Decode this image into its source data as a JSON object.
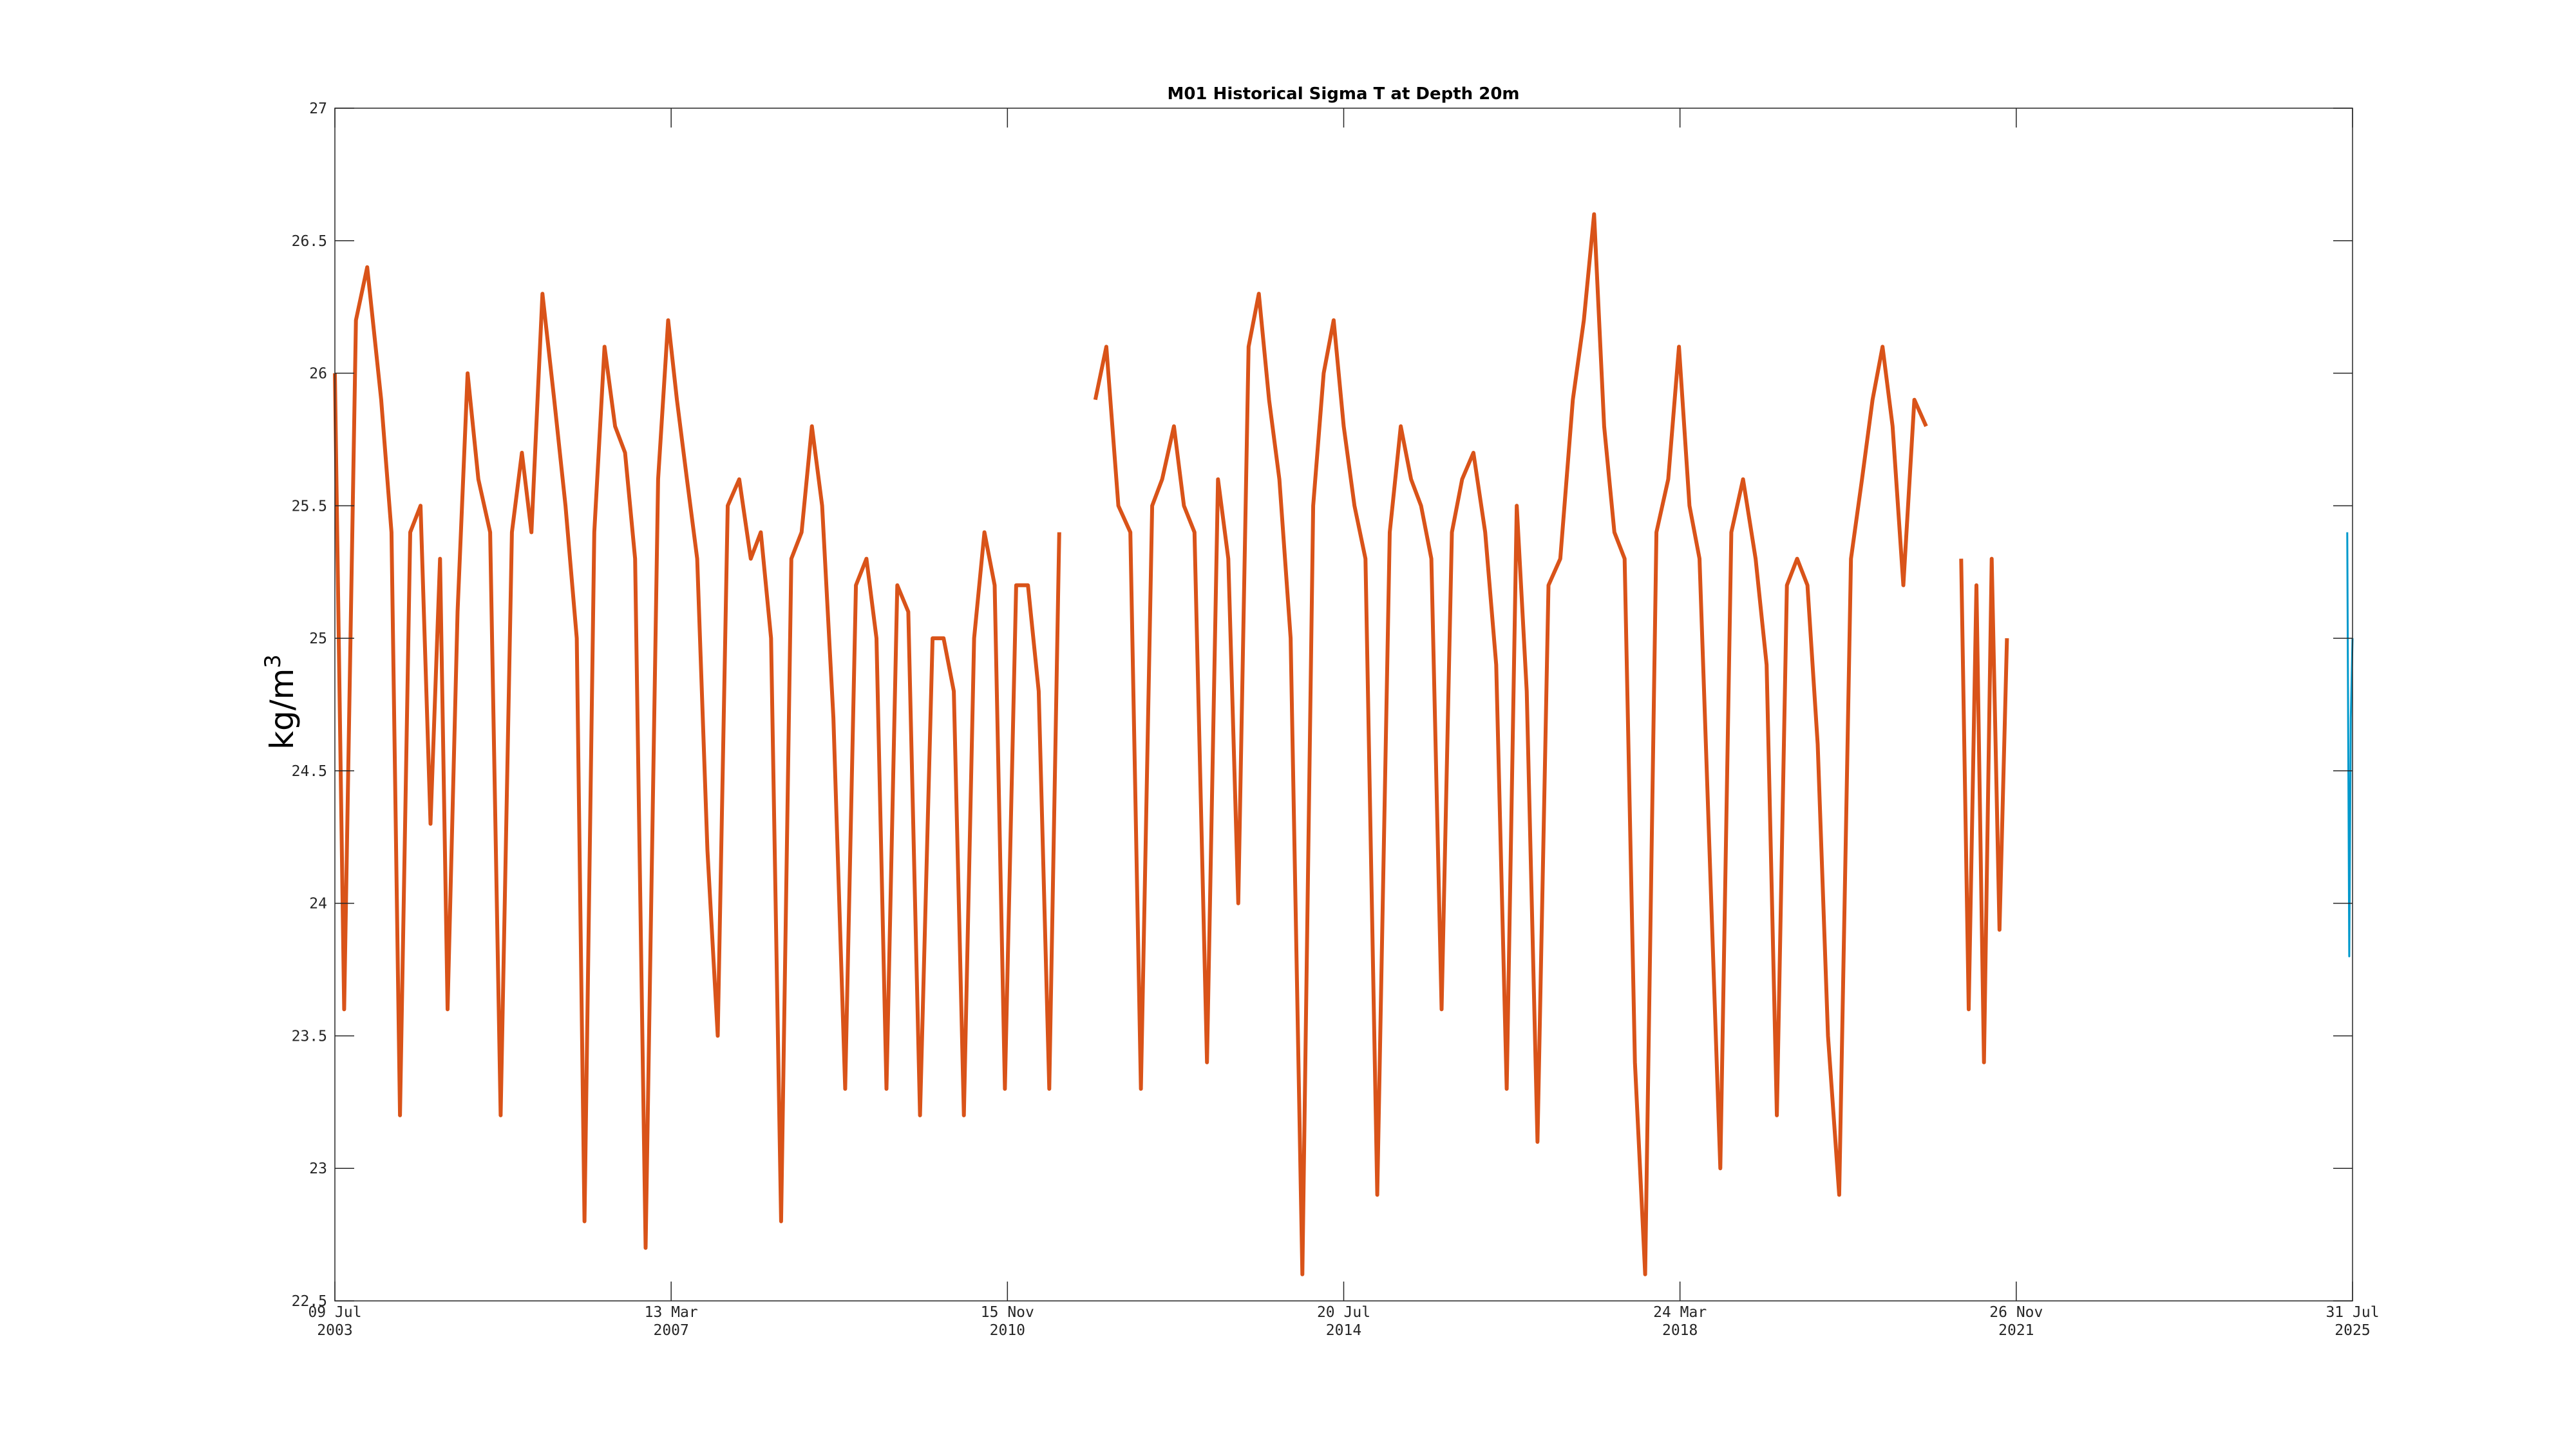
{
  "chart_data": {
    "type": "line",
    "title": "M01 Historical Sigma T at Depth 20m",
    "xlabel": "",
    "ylabel_base": "kg/m",
    "ylabel_superscript": "3",
    "ylim": [
      22.5,
      27
    ],
    "yticks": [
      "22.5",
      "23",
      "23.5",
      "24",
      "24.5",
      "25",
      "25.5",
      "26",
      "26.5",
      "27"
    ],
    "xlim": [
      "2003-07-09",
      "2025-07-31"
    ],
    "xticks": [
      {
        "date": "2003-07-09",
        "label_top": "09 Jul",
        "label_bottom": "2003"
      },
      {
        "date": "2007-03-13",
        "label_top": "13 Mar",
        "label_bottom": "2007"
      },
      {
        "date": "2010-11-15",
        "label_top": "15 Nov",
        "label_bottom": "2010"
      },
      {
        "date": "2014-07-20",
        "label_top": "20 Jul",
        "label_bottom": "2014"
      },
      {
        "date": "2018-03-24",
        "label_top": "24 Mar",
        "label_bottom": "2018"
      },
      {
        "date": "2021-11-26",
        "label_top": "26 Nov",
        "label_bottom": "2021"
      },
      {
        "date": "2025-07-31",
        "label_top": "31 Jul",
        "label_bottom": "2025"
      }
    ],
    "grid": false,
    "colors": {
      "primary": "#D95319",
      "secondary": "#0099CC"
    },
    "series": [
      {
        "color": "#D95319",
        "segments": [
          {
            "x": [
              "2003-07-09",
              "2003-08-15",
              "2003-10-01",
              "2003-11-15",
              "2004-01-10",
              "2004-02-20",
              "2004-03-25",
              "2004-05-05",
              "2004-06-15",
              "2004-07-25",
              "2004-09-01",
              "2004-10-01",
              "2004-11-10",
              "2004-12-20",
              "2005-02-01",
              "2005-03-20",
              "2005-05-01",
              "2005-06-15",
              "2005-07-25",
              "2005-09-01",
              "2005-10-15",
              "2005-12-01",
              "2006-01-15",
              "2006-03-01",
              "2006-04-01",
              "2006-05-10",
              "2006-06-20",
              "2006-08-01",
              "2006-09-10",
              "2006-10-20",
              "2006-12-01",
              "2007-01-20",
              "2007-03-01",
              "2007-04-05",
              "2007-05-15",
              "2007-06-25",
              "2007-08-05",
              "2007-09-15",
              "2007-10-25",
              "2007-12-10",
              "2008-01-25",
              "2008-03-05",
              "2008-04-15",
              "2008-05-25",
              "2008-07-05",
              "2008-08-15",
              "2008-09-25",
              "2008-11-05",
              "2008-12-20",
              "2009-02-05",
              "2009-03-20",
              "2009-05-01",
              "2009-06-10",
              "2009-07-20",
              "2009-09-01",
              "2009-10-15",
              "2009-12-01",
              "2010-01-20",
              "2010-03-05",
              "2010-04-15",
              "2010-05-25",
              "2010-07-05",
              "2010-08-15",
              "2010-09-25",
              "2010-11-05",
              "2010-12-20",
              "2011-02-05",
              "2011-03-20",
              "2011-05-01",
              "2011-06-10"
            ],
            "y": [
              26.0,
              23.6,
              26.2,
              26.4,
              25.9,
              25.4,
              23.2,
              25.4,
              25.5,
              24.3,
              25.3,
              23.6,
              25.1,
              26.0,
              25.6,
              25.4,
              23.2,
              25.4,
              25.7,
              25.4,
              26.3,
              25.9,
              25.5,
              25.0,
              22.8,
              25.4,
              26.1,
              25.8,
              25.7,
              25.3,
              22.7,
              25.6,
              26.2,
              25.9,
              25.6,
              25.3,
              24.2,
              23.5,
              25.5,
              25.6,
              25.3,
              25.4,
              25.0,
              22.8,
              25.3,
              25.4,
              25.8,
              25.5,
              24.7,
              23.3,
              25.2,
              25.3,
              25.0,
              23.3,
              25.2,
              25.1,
              23.2,
              25.0,
              25.0,
              24.8,
              23.2,
              25.0,
              25.4,
              25.2,
              23.3,
              25.2,
              25.2,
              24.8,
              23.3,
              25.4
            ]
          },
          {
            "x": [
              "2011-11-01",
              "2011-12-15",
              "2012-02-01",
              "2012-03-20",
              "2012-05-01",
              "2012-06-15",
              "2012-07-25",
              "2012-09-10",
              "2012-10-20",
              "2012-12-01",
              "2013-01-20",
              "2013-03-05",
              "2013-04-15",
              "2013-05-25",
              "2013-07-05",
              "2013-08-15",
              "2013-09-25",
              "2013-11-05",
              "2013-12-20",
              "2014-02-05",
              "2014-03-20",
              "2014-05-01",
              "2014-06-10",
              "2014-07-20",
              "2014-09-01",
              "2014-10-15",
              "2014-12-01",
              "2015-01-20",
              "2015-03-05",
              "2015-04-15",
              "2015-05-25",
              "2015-07-05",
              "2015-08-15",
              "2015-09-25",
              "2015-11-05",
              "2015-12-20",
              "2016-02-05",
              "2016-03-20",
              "2016-05-01",
              "2016-06-10",
              "2016-07-20",
              "2016-09-01",
              "2016-10-15",
              "2016-12-01",
              "2017-01-20",
              "2017-03-05",
              "2017-04-15",
              "2017-05-25",
              "2017-07-05",
              "2017-08-15",
              "2017-09-25",
              "2017-11-05",
              "2017-12-20",
              "2018-02-05",
              "2018-03-20",
              "2018-05-01",
              "2018-06-10",
              "2018-07-20",
              "2018-09-01",
              "2018-10-15",
              "2018-12-01",
              "2019-01-20",
              "2019-03-05",
              "2019-04-15",
              "2019-05-25",
              "2019-07-05",
              "2019-08-15",
              "2019-09-25",
              "2019-11-05",
              "2019-12-20",
              "2020-02-05",
              "2020-03-20",
              "2020-05-01",
              "2020-06-10",
              "2020-07-20",
              "2020-09-01",
              "2020-10-15",
              "2020-12-01"
            ],
            "y": [
              25.9,
              26.1,
              25.5,
              25.4,
              23.3,
              25.5,
              25.6,
              25.8,
              25.5,
              25.4,
              23.4,
              25.6,
              25.3,
              24.0,
              26.1,
              26.3,
              25.9,
              25.6,
              25.0,
              22.6,
              25.5,
              26.0,
              26.2,
              25.8,
              25.5,
              25.3,
              22.9,
              25.4,
              25.8,
              25.6,
              25.5,
              25.3,
              23.6,
              25.4,
              25.6,
              25.7,
              25.4,
              24.9,
              23.3,
              25.5,
              24.8,
              23.1,
              25.2,
              25.3,
              25.9,
              26.2,
              26.6,
              25.8,
              25.4,
              25.3,
              23.4,
              22.6,
              25.4,
              25.6,
              26.1,
              25.5,
              25.3,
              24.2,
              23.0,
              25.4,
              25.6,
              25.3,
              24.9,
              23.2,
              25.2,
              25.3,
              25.2,
              24.6,
              23.5,
              22.9,
              25.3,
              25.6,
              25.9,
              26.1,
              25.8,
              25.2,
              25.9,
              25.8
            ]
          },
          {
            "x": [
              "2021-04-20",
              "2021-05-20",
              "2021-06-20",
              "2021-07-20",
              "2021-08-20",
              "2021-09-20",
              "2021-10-20"
            ],
            "y": [
              25.3,
              23.6,
              25.2,
              23.4,
              25.3,
              23.9,
              25.0
            ]
          }
        ]
      },
      {
        "color": "#0099CC",
        "segments": [
          {
            "x": [
              "2025-07-10",
              "2025-07-18",
              "2025-07-24",
              "2025-07-31"
            ],
            "y": [
              25.4,
              23.8,
              24.7,
              25.0
            ]
          }
        ]
      }
    ]
  }
}
